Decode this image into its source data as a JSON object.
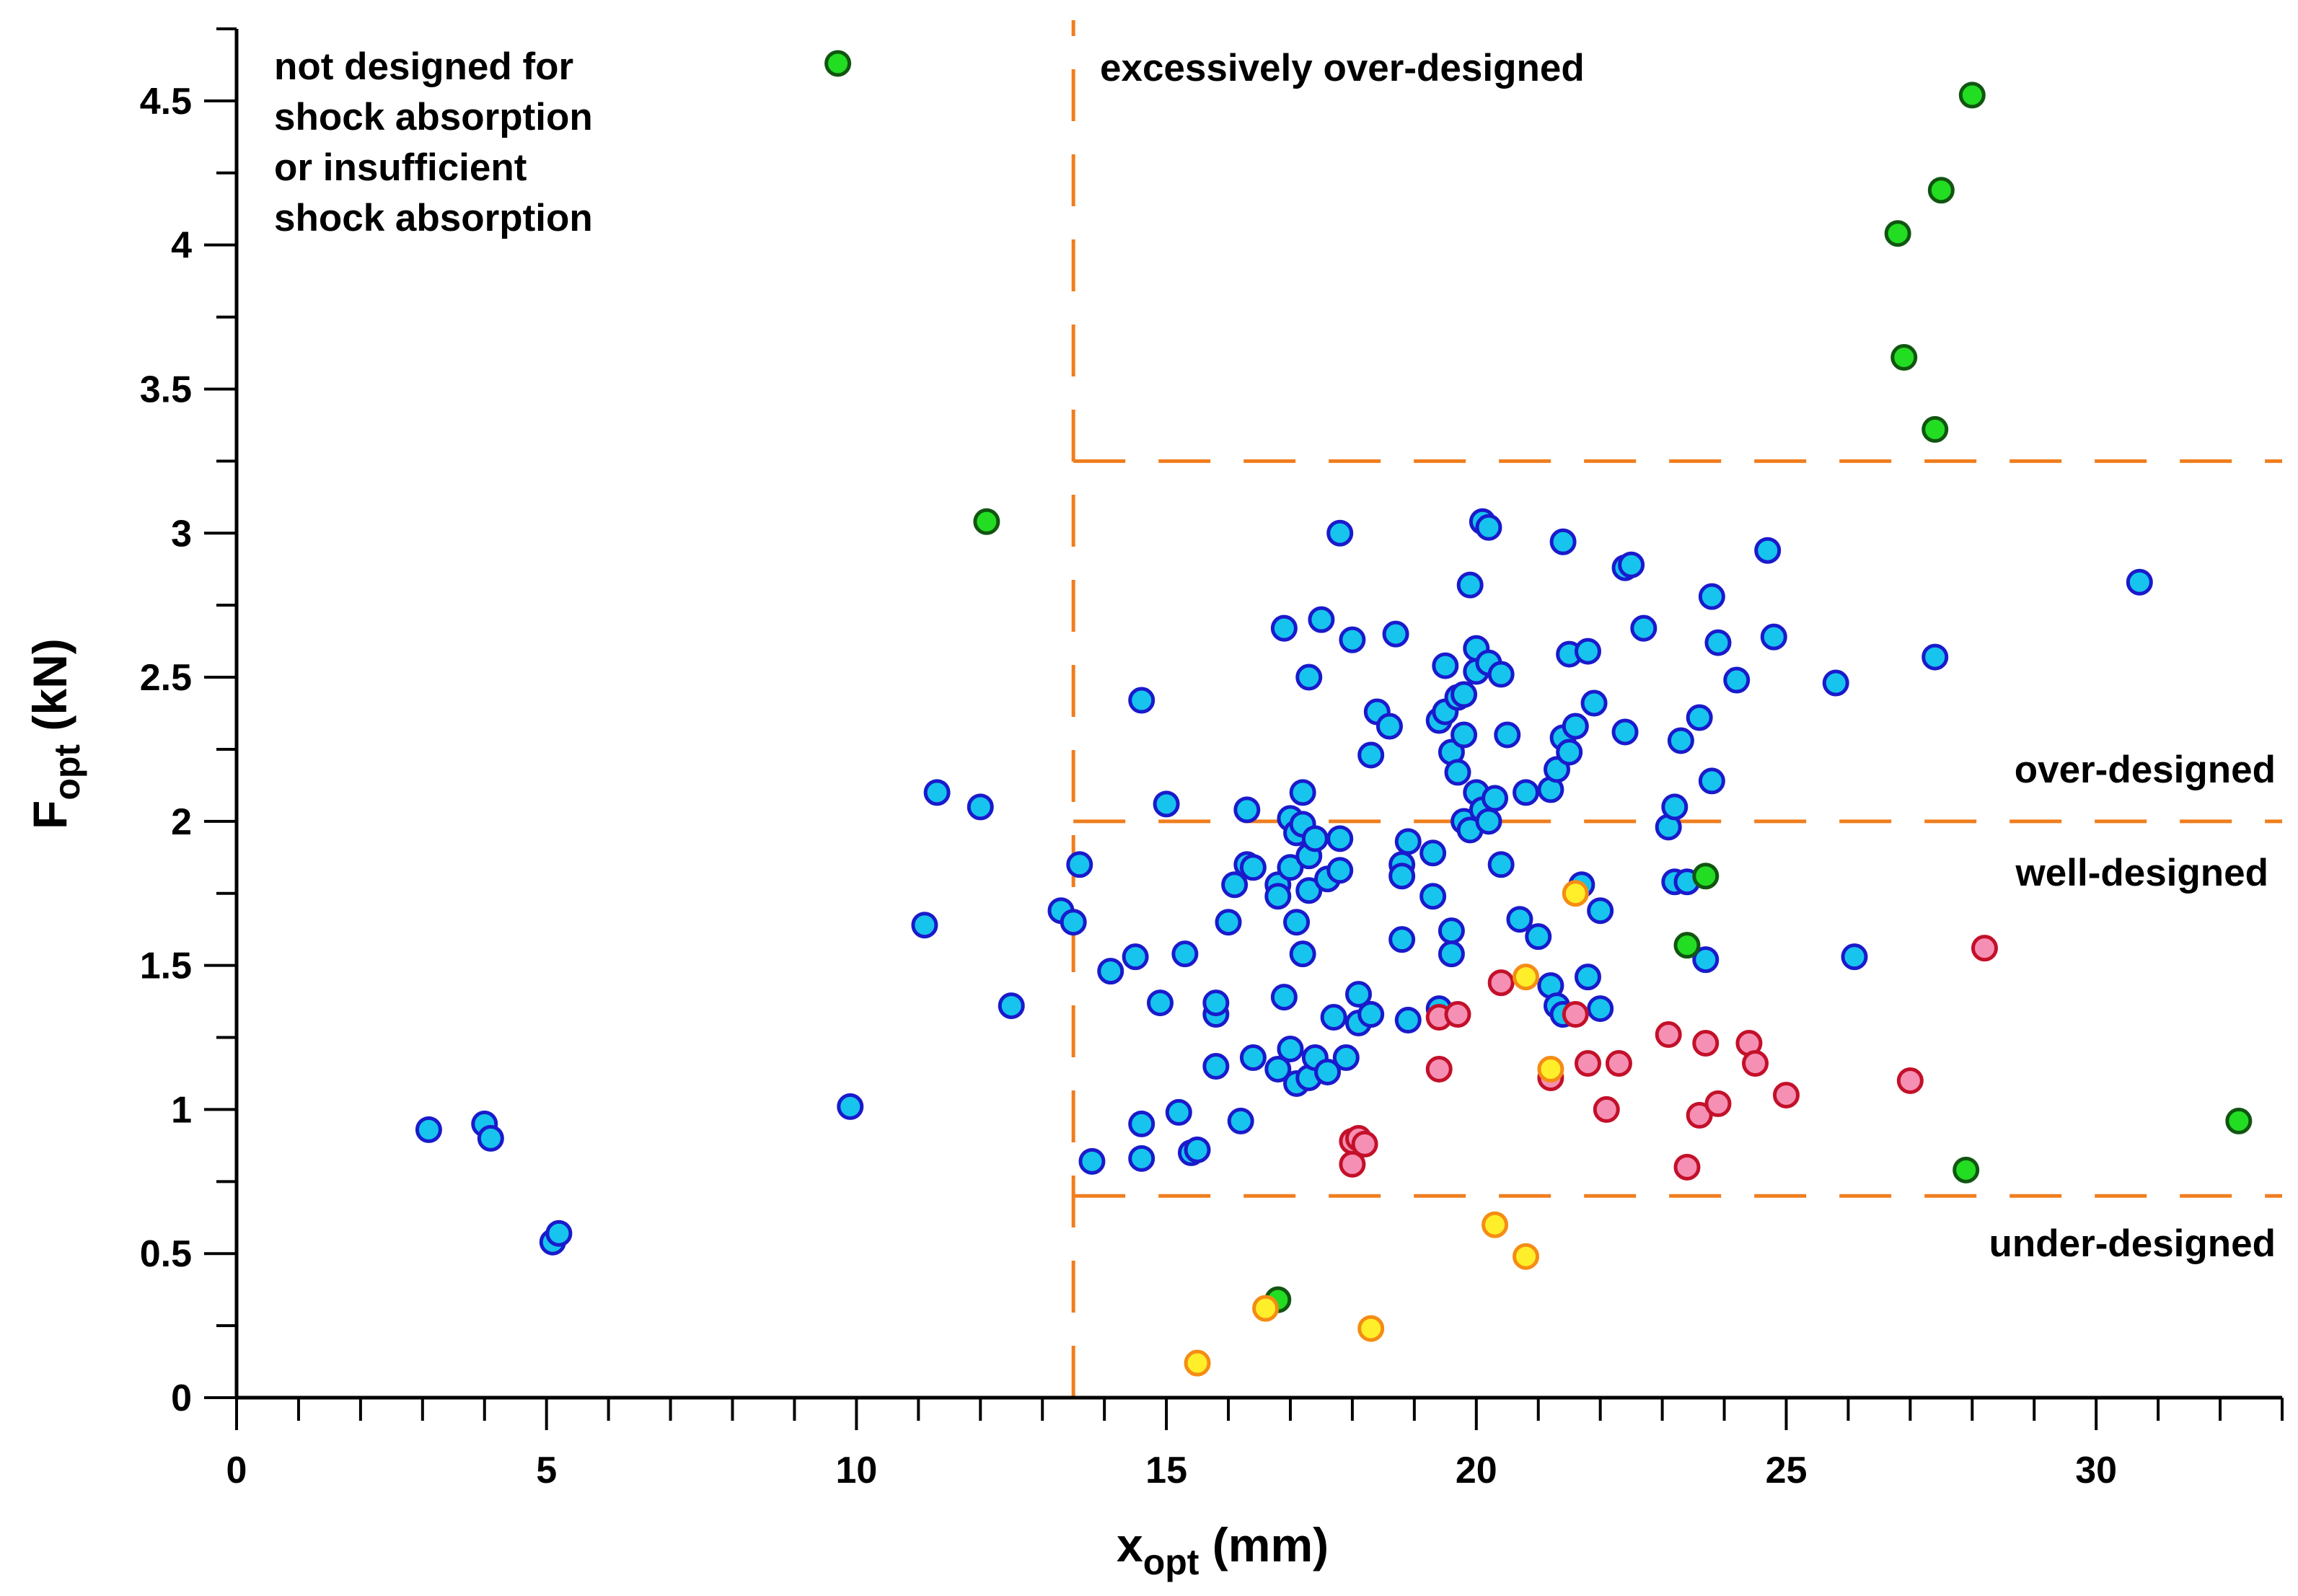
{
  "chart_data": {
    "type": "scatter",
    "title": "",
    "xlabel": {
      "main": "x",
      "sub": "opt",
      "unit": " (mm)"
    },
    "ylabel": {
      "main": "F",
      "sub": "opt",
      "unit": " (kN)"
    },
    "xlim": [
      0,
      33
    ],
    "ylim": [
      0,
      4.75
    ],
    "xticks": [
      0,
      5,
      10,
      15,
      20,
      25,
      30
    ],
    "yticks": [
      0,
      0.5,
      1,
      1.5,
      2,
      2.5,
      3,
      3.5,
      4,
      4.5
    ],
    "xtick_labels": [
      "0",
      "5",
      "10",
      "15",
      "20",
      "25",
      "30"
    ],
    "ytick_labels": [
      "0",
      "0.5",
      "1",
      "1.5",
      "2",
      "2.5",
      "3",
      "3.5",
      "4",
      "4.5"
    ],
    "grid": false,
    "thresholds": {
      "x_vertical": 13.5,
      "y_lines": [
        3.25,
        2.0,
        0.7
      ],
      "color": "#f07d1e"
    },
    "annotations": [
      {
        "id": "not-designed",
        "lines": [
          "not designed for",
          "shock absorption",
          "or insufficient",
          "shock absorption"
        ]
      },
      {
        "id": "excessive",
        "lines": [
          "excessively over-designed"
        ]
      },
      {
        "id": "over",
        "lines": [
          "over-designed"
        ]
      },
      {
        "id": "well",
        "lines": [
          "well-designed"
        ]
      },
      {
        "id": "under",
        "lines": [
          "under-designed"
        ]
      }
    ],
    "series": [
      {
        "name": "blue",
        "fill": "#16c4ee",
        "stroke": "#1a1acc",
        "points": [
          [
            3.1,
            0.93
          ],
          [
            4.0,
            0.95
          ],
          [
            4.1,
            0.9
          ],
          [
            5.1,
            0.54
          ],
          [
            5.2,
            0.57
          ],
          [
            9.9,
            1.01
          ],
          [
            11.1,
            1.64
          ],
          [
            11.3,
            2.1
          ],
          [
            12.0,
            2.05
          ],
          [
            12.5,
            1.36
          ],
          [
            13.3,
            1.69
          ],
          [
            13.5,
            1.65
          ],
          [
            13.6,
            1.85
          ],
          [
            13.8,
            0.82
          ],
          [
            14.1,
            1.48
          ],
          [
            14.5,
            1.53
          ],
          [
            14.6,
            2.42
          ],
          [
            14.6,
            0.83
          ],
          [
            14.6,
            0.95
          ],
          [
            14.9,
            1.37
          ],
          [
            15.0,
            2.06
          ],
          [
            15.2,
            0.99
          ],
          [
            15.3,
            1.54
          ],
          [
            15.4,
            0.85
          ],
          [
            15.5,
            0.86
          ],
          [
            15.8,
            1.15
          ],
          [
            15.8,
            1.33
          ],
          [
            15.8,
            1.37
          ],
          [
            16.0,
            1.65
          ],
          [
            16.1,
            1.78
          ],
          [
            16.2,
            0.96
          ],
          [
            16.3,
            2.04
          ],
          [
            16.3,
            1.85
          ],
          [
            16.4,
            1.84
          ],
          [
            16.4,
            1.18
          ],
          [
            16.8,
            1.78
          ],
          [
            16.8,
            1.14
          ],
          [
            16.8,
            1.74
          ],
          [
            16.9,
            1.39
          ],
          [
            16.9,
            2.67
          ],
          [
            17.0,
            1.84
          ],
          [
            17.0,
            2.01
          ],
          [
            17.0,
            1.21
          ],
          [
            17.1,
            1.09
          ],
          [
            17.1,
            1.65
          ],
          [
            17.1,
            1.96
          ],
          [
            17.2,
            1.54
          ],
          [
            17.2,
            2.1
          ],
          [
            17.2,
            1.99
          ],
          [
            17.3,
            1.88
          ],
          [
            17.3,
            1.76
          ],
          [
            17.3,
            2.5
          ],
          [
            17.3,
            1.11
          ],
          [
            17.4,
            1.18
          ],
          [
            17.4,
            1.94
          ],
          [
            17.5,
            2.7
          ],
          [
            17.6,
            1.13
          ],
          [
            17.6,
            1.8
          ],
          [
            17.7,
            1.32
          ],
          [
            17.8,
            3.0
          ],
          [
            17.8,
            1.83
          ],
          [
            17.8,
            1.94
          ],
          [
            17.9,
            1.18
          ],
          [
            18.0,
            2.63
          ],
          [
            18.1,
            1.4
          ],
          [
            18.1,
            1.3
          ],
          [
            18.3,
            2.23
          ],
          [
            18.3,
            1.33
          ],
          [
            18.4,
            2.38
          ],
          [
            18.6,
            2.33
          ],
          [
            18.7,
            2.65
          ],
          [
            18.8,
            1.85
          ],
          [
            18.8,
            1.81
          ],
          [
            18.8,
            1.59
          ],
          [
            18.9,
            1.93
          ],
          [
            18.9,
            1.31
          ],
          [
            19.3,
            1.74
          ],
          [
            19.3,
            1.89
          ],
          [
            19.4,
            2.35
          ],
          [
            19.4,
            1.35
          ],
          [
            19.5,
            2.38
          ],
          [
            19.5,
            2.54
          ],
          [
            19.6,
            1.54
          ],
          [
            19.6,
            1.62
          ],
          [
            19.6,
            2.24
          ],
          [
            19.7,
            2.17
          ],
          [
            19.7,
            2.43
          ],
          [
            19.8,
            2.3
          ],
          [
            19.8,
            2.0
          ],
          [
            19.8,
            2.44
          ],
          [
            19.9,
            1.97
          ],
          [
            19.9,
            2.82
          ],
          [
            20.0,
            2.6
          ],
          [
            20.0,
            2.1
          ],
          [
            20.0,
            2.52
          ],
          [
            20.1,
            2.04
          ],
          [
            20.1,
            3.04
          ],
          [
            20.2,
            3.02
          ],
          [
            20.2,
            2.55
          ],
          [
            20.2,
            2.0
          ],
          [
            20.3,
            2.08
          ],
          [
            20.4,
            2.51
          ],
          [
            20.4,
            1.85
          ],
          [
            20.5,
            2.3
          ],
          [
            20.7,
            1.66
          ],
          [
            20.8,
            2.1
          ],
          [
            21.0,
            1.6
          ],
          [
            21.2,
            2.11
          ],
          [
            21.2,
            1.43
          ],
          [
            21.3,
            2.18
          ],
          [
            21.3,
            1.36
          ],
          [
            21.4,
            2.29
          ],
          [
            21.4,
            2.97
          ],
          [
            21.4,
            1.33
          ],
          [
            21.5,
            2.58
          ],
          [
            21.5,
            2.24
          ],
          [
            21.6,
            2.33
          ],
          [
            21.7,
            1.78
          ],
          [
            21.8,
            1.46
          ],
          [
            21.8,
            2.59
          ],
          [
            21.9,
            2.41
          ],
          [
            22.0,
            1.69
          ],
          [
            22.0,
            1.35
          ],
          [
            22.4,
            2.31
          ],
          [
            22.4,
            2.88
          ],
          [
            22.5,
            2.89
          ],
          [
            22.7,
            2.67
          ],
          [
            23.1,
            1.98
          ],
          [
            23.2,
            2.05
          ],
          [
            23.2,
            1.79
          ],
          [
            23.3,
            2.28
          ],
          [
            23.4,
            1.79
          ],
          [
            23.6,
            2.36
          ],
          [
            23.7,
            1.52
          ],
          [
            23.8,
            2.14
          ],
          [
            23.8,
            2.78
          ],
          [
            23.9,
            2.62
          ],
          [
            24.2,
            2.49
          ],
          [
            24.7,
            2.94
          ],
          [
            24.8,
            2.64
          ],
          [
            25.8,
            2.48
          ],
          [
            26.1,
            1.53
          ],
          [
            27.4,
            2.57
          ],
          [
            30.7,
            2.83
          ]
        ]
      },
      {
        "name": "green",
        "fill": "#22dd22",
        "stroke": "#115511",
        "points": [
          [
            9.7,
            4.63
          ],
          [
            12.1,
            3.04
          ],
          [
            16.8,
            0.34
          ],
          [
            23.4,
            1.57
          ],
          [
            23.7,
            1.81
          ],
          [
            26.8,
            4.04
          ],
          [
            26.9,
            3.61
          ],
          [
            27.4,
            3.36
          ],
          [
            27.5,
            4.19
          ],
          [
            27.9,
            0.79
          ],
          [
            28.0,
            4.52
          ],
          [
            32.3,
            0.96
          ]
        ]
      },
      {
        "name": "pink",
        "fill": "#f590b4",
        "stroke": "#c4102a",
        "points": [
          [
            18.0,
            0.81
          ],
          [
            18.0,
            0.89
          ],
          [
            18.1,
            0.9
          ],
          [
            18.2,
            0.88
          ],
          [
            19.4,
            1.14
          ],
          [
            19.4,
            1.32
          ],
          [
            19.7,
            1.33
          ],
          [
            20.4,
            1.44
          ],
          [
            21.2,
            1.11
          ],
          [
            21.6,
            1.33
          ],
          [
            21.8,
            1.16
          ],
          [
            22.1,
            1.0
          ],
          [
            22.3,
            1.16
          ],
          [
            23.1,
            1.26
          ],
          [
            23.4,
            0.8
          ],
          [
            23.6,
            0.98
          ],
          [
            23.7,
            1.23
          ],
          [
            23.9,
            1.02
          ],
          [
            24.4,
            1.23
          ],
          [
            24.5,
            1.16
          ],
          [
            25.0,
            1.05
          ],
          [
            27.0,
            1.1
          ],
          [
            28.2,
            1.56
          ]
        ]
      },
      {
        "name": "yellow",
        "fill": "#ffee2a",
        "stroke": "#f58c14",
        "points": [
          [
            15.5,
            0.12
          ],
          [
            16.6,
            0.31
          ],
          [
            18.3,
            0.24
          ],
          [
            20.3,
            0.6
          ],
          [
            20.8,
            0.49
          ],
          [
            20.8,
            1.46
          ],
          [
            21.2,
            1.14
          ],
          [
            21.6,
            1.75
          ]
        ]
      }
    ]
  }
}
